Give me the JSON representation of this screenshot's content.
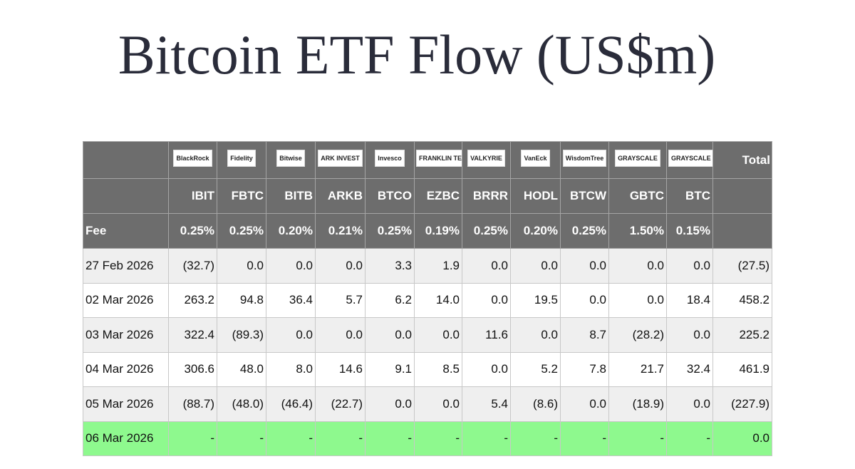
{
  "title": "Bitcoin ETF Flow (US$m)",
  "table": {
    "logos": [
      "BlackRock",
      "Fidelity",
      "Bitwise",
      "ARK INVEST",
      "Invesco",
      "FRANKLIN TEMPLETON",
      "VALKYRIE",
      "VanEck",
      "WisdomTree",
      "GRAYSCALE",
      "GRAYSCALE"
    ],
    "total_header": "Total",
    "tickers": [
      "IBIT",
      "FBTC",
      "BITB",
      "ARKB",
      "BTCO",
      "EZBC",
      "BRRR",
      "HODL",
      "BTCW",
      "GBTC",
      "BTC"
    ],
    "fee_label": "Fee",
    "fees": [
      "0.25%",
      "0.25%",
      "0.20%",
      "0.21%",
      "0.25%",
      "0.19%",
      "0.25%",
      "0.20%",
      "0.25%",
      "1.50%",
      "0.15%"
    ],
    "rows": [
      [
        "27 Feb 2026",
        "(32.7)",
        "0.0",
        "0.0",
        "0.0",
        "3.3",
        "1.9",
        "0.0",
        "0.0",
        "0.0",
        "0.0",
        "0.0",
        "(27.5)"
      ],
      [
        "02 Mar 2026",
        "263.2",
        "94.8",
        "36.4",
        "5.7",
        "6.2",
        "14.0",
        "0.0",
        "19.5",
        "0.0",
        "0.0",
        "18.4",
        "458.2"
      ],
      [
        "03 Mar 2026",
        "322.4",
        "(89.3)",
        "0.0",
        "0.0",
        "0.0",
        "0.0",
        "11.6",
        "0.0",
        "8.7",
        "(28.2)",
        "0.0",
        "225.2"
      ],
      [
        "04 Mar 2026",
        "306.6",
        "48.0",
        "8.0",
        "14.6",
        "9.1",
        "8.5",
        "0.0",
        "5.2",
        "7.8",
        "21.7",
        "32.4",
        "461.9"
      ],
      [
        "05 Mar 2026",
        "(88.7)",
        "(48.0)",
        "(46.4)",
        "(22.7)",
        "0.0",
        "0.0",
        "5.4",
        "(8.6)",
        "0.0",
        "(18.9)",
        "0.0",
        "(227.9)"
      ],
      [
        "06 Mar 2026",
        "-",
        "-",
        "-",
        "-",
        "-",
        "-",
        "-",
        "-",
        "-",
        "-",
        "-",
        "0.0"
      ]
    ]
  }
}
